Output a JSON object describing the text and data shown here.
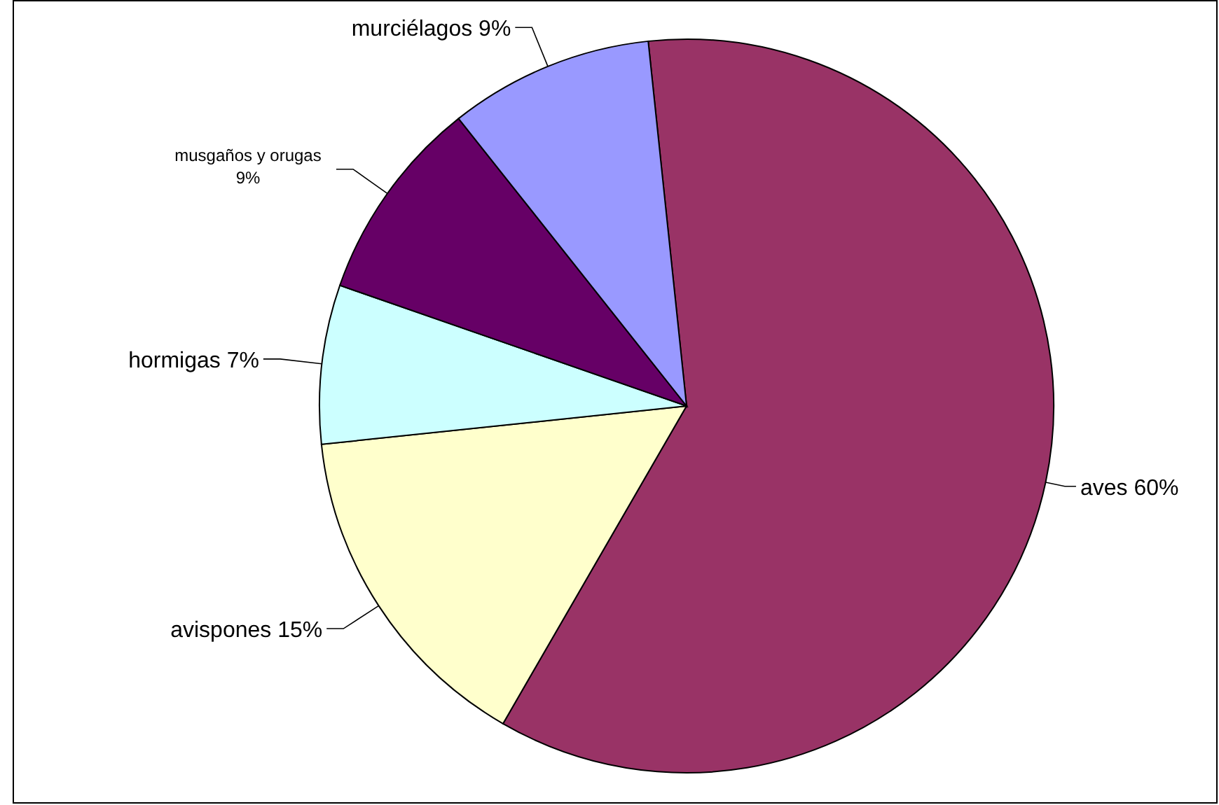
{
  "chart_data": {
    "type": "pie",
    "categories": [
      "aves",
      "avispones",
      "hormigas",
      "musgaños y orugas",
      "murciélagos"
    ],
    "values": [
      60,
      15,
      7,
      9,
      9
    ],
    "colors": [
      "#993366",
      "#ffffcc",
      "#ccffff",
      "#660066",
      "#9999ff"
    ],
    "value_labels": [
      "60%",
      "15%",
      "7%",
      "9%",
      "9%"
    ]
  }
}
